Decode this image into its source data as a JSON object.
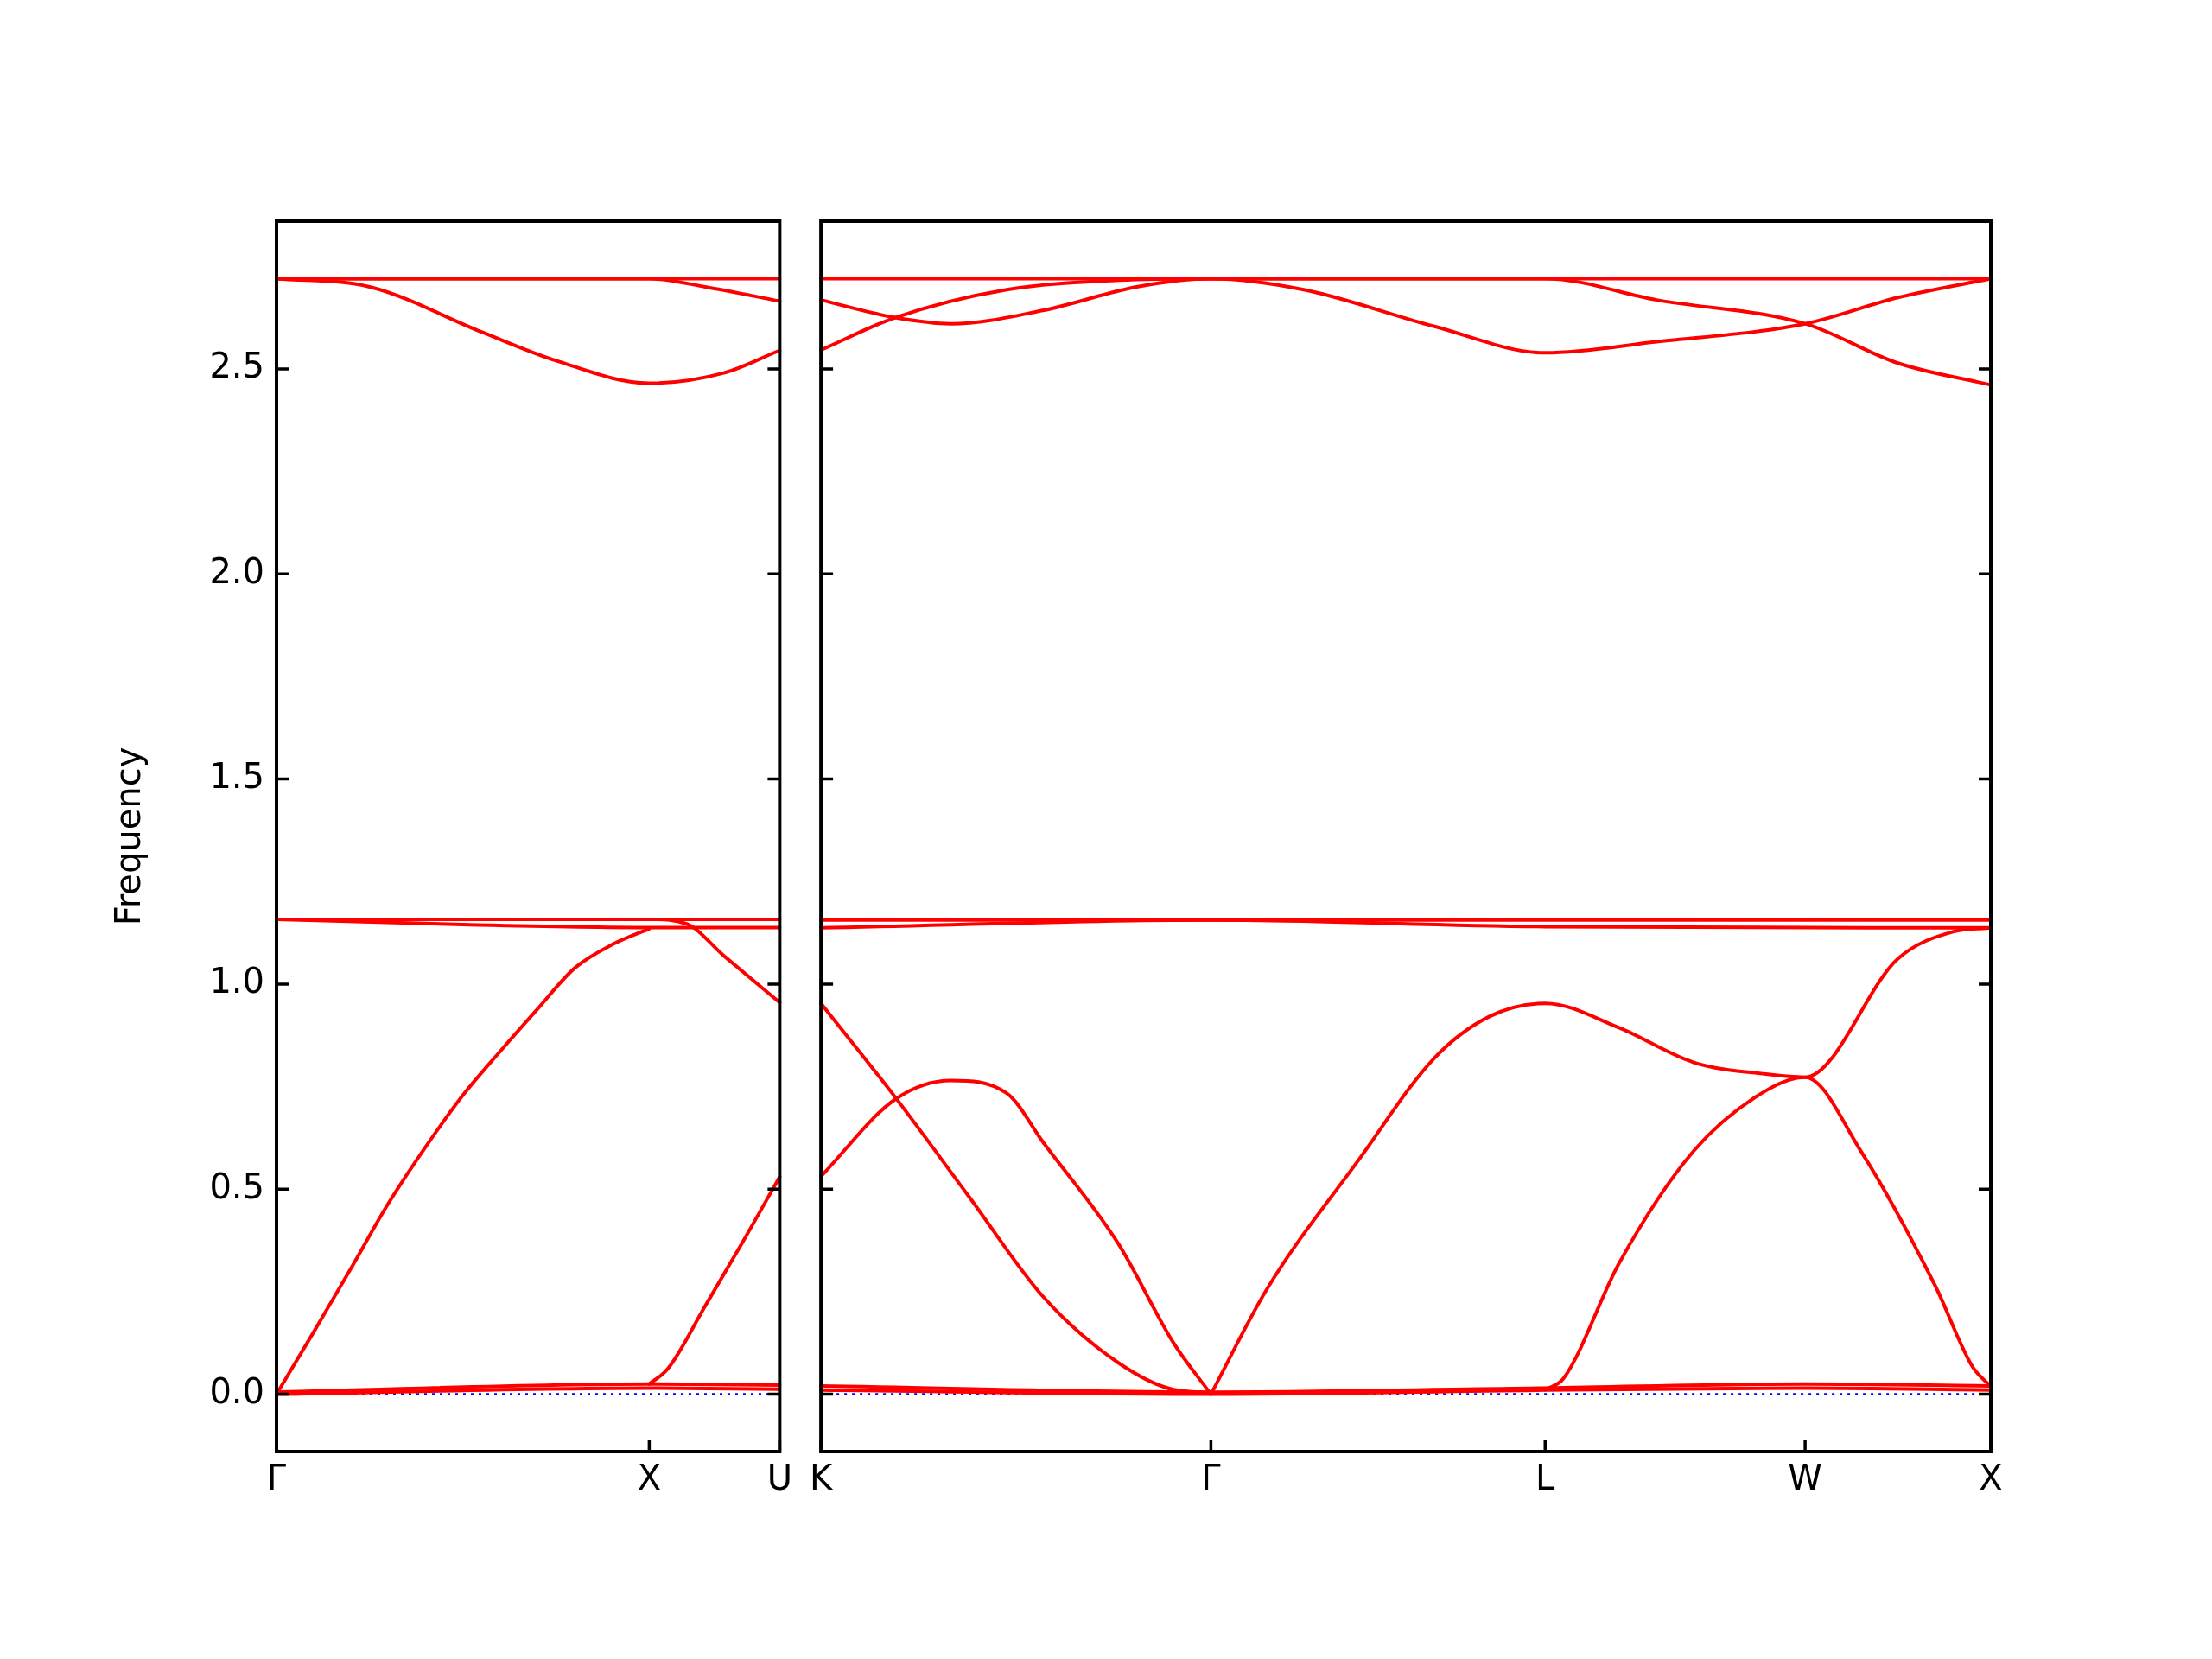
{
  "chart_data": [
    {
      "type": "line",
      "ylabel": "Frequency",
      "ylim": [
        -0.14,
        2.86
      ],
      "categories": [
        "Γ",
        null,
        null,
        null,
        null,
        null,
        null,
        null,
        null,
        null,
        null,
        null,
        null,
        null,
        null,
        null,
        null,
        null,
        null,
        null,
        "X",
        null,
        null,
        null,
        null,
        null,
        null,
        "U"
      ],
      "yticks": [
        {
          "value": 0,
          "label": "0.0"
        },
        {
          "value": 0.5,
          "label": "0.5"
        },
        {
          "value": 1.0,
          "label": "1.0"
        },
        {
          "value": 1.5,
          "label": "1.5"
        },
        {
          "value": 2.0,
          "label": "2.0"
        },
        {
          "value": 2.5,
          "label": "2.5"
        }
      ],
      "ref_lines": [
        {
          "axis": "y",
          "value": 0,
          "color": "#0000ff",
          "line_style": "dotted"
        }
      ],
      "series": [
        {
          "color": "#ff0000",
          "values": [
            2.72,
            null,
            null,
            null,
            null,
            null,
            null,
            null,
            null,
            null,
            null,
            null,
            null,
            null,
            null,
            null,
            null,
            null,
            null,
            null,
            null,
            null,
            null,
            null,
            null,
            null,
            null,
            2.72
          ]
        },
        {
          "color": "#ff0000",
          "values": [
            2.72,
            null,
            null,
            null,
            null,
            2.7,
            null,
            null,
            null,
            null,
            null,
            2.59,
            null,
            null,
            null,
            2.52,
            null,
            null,
            null,
            null,
            2.465,
            null,
            null,
            null,
            2.49,
            null,
            null,
            2.545
          ]
        },
        {
          "color": "#ff0000",
          "values": [
            2.72,
            null,
            null,
            null,
            null,
            null,
            null,
            null,
            null,
            null,
            null,
            null,
            null,
            null,
            null,
            null,
            null,
            null,
            null,
            null,
            2.72,
            null,
            null,
            2.7,
            null,
            null,
            null,
            2.665
          ]
        },
        {
          "color": "#ff0000",
          "values": [
            1.158,
            null,
            null,
            null,
            null,
            null,
            null,
            null,
            null,
            null,
            null,
            null,
            null,
            null,
            null,
            null,
            null,
            null,
            null,
            null,
            null,
            null,
            null,
            null,
            null,
            null,
            null,
            1.158
          ]
        },
        {
          "color": "#ff0000",
          "values": [
            1.158,
            null,
            null,
            null,
            null,
            null,
            null,
            null,
            null,
            null,
            1.145,
            null,
            null,
            null,
            null,
            null,
            null,
            null,
            null,
            null,
            1.138,
            null,
            null,
            null,
            null,
            null,
            null,
            1.138
          ]
        },
        {
          "color": "#ff0000",
          "values": [
            1.158,
            null,
            null,
            null,
            null,
            null,
            null,
            null,
            null,
            null,
            null,
            null,
            null,
            null,
            null,
            null,
            null,
            null,
            null,
            null,
            1.158,
            null,
            1.147,
            null,
            1.069,
            null,
            null,
            0.955
          ]
        },
        {
          "color": "#ff0000",
          "values": [
            0,
            null,
            0.152,
            null,
            0.307,
            null,
            0.465,
            null,
            0.603,
            null,
            0.729,
            null,
            0.836,
            null,
            0.939,
            null,
            1.039,
            null,
            1.096,
            null,
            1.135,
            null,
            null,
            null,
            null,
            null,
            null,
            null
          ]
        },
        {
          "color": "#ff0000",
          "values": [
            null,
            null,
            null,
            null,
            null,
            null,
            null,
            null,
            null,
            null,
            null,
            null,
            null,
            null,
            null,
            null,
            null,
            null,
            null,
            null,
            0.025,
            0.062,
            null,
            0.215,
            null,
            0.37,
            null,
            0.53
          ]
        },
        {
          "color": "#ff0000",
          "values": [
            0.005,
            null,
            null,
            null,
            null,
            null,
            null,
            null,
            null,
            null,
            null,
            null,
            null,
            null,
            null,
            null,
            null,
            null,
            null,
            null,
            0.025,
            null,
            null,
            null,
            null,
            null,
            null,
            0.022
          ]
        },
        {
          "color": "#ff0000",
          "values": [
            0,
            null,
            null,
            null,
            null,
            null,
            null,
            null,
            null,
            null,
            null,
            null,
            null,
            null,
            null,
            null,
            null,
            null,
            null,
            null,
            0.015,
            null,
            null,
            null,
            null,
            null,
            null,
            0.012
          ]
        }
      ]
    },
    {
      "type": "line",
      "tick_labels": "x",
      "ylim": [
        -0.14,
        2.86
      ],
      "categories": [
        "K",
        null,
        null,
        null,
        null,
        null,
        null,
        null,
        null,
        null,
        null,
        null,
        null,
        null,
        null,
        null,
        null,
        null,
        null,
        null,
        null,
        "Γ",
        null,
        null,
        null,
        null,
        null,
        null,
        null,
        null,
        null,
        null,
        null,
        null,
        null,
        null,
        null,
        null,
        null,
        "L",
        null,
        null,
        null,
        null,
        null,
        null,
        null,
        null,
        null,
        null,
        null,
        null,
        null,
        "W",
        null,
        null,
        null,
        null,
        null,
        null,
        null,
        null,
        null,
        "X"
      ],
      "yticks": [
        {
          "value": 0,
          "label": null
        },
        {
          "value": 0.5,
          "label": null
        },
        {
          "value": 1.0,
          "label": null
        },
        {
          "value": 1.5,
          "label": null
        },
        {
          "value": 2.0,
          "label": null
        },
        {
          "value": 2.5,
          "label": null
        }
      ],
      "ref_lines": [
        {
          "axis": "y",
          "value": 0,
          "color": "#0000ff",
          "line_style": "dotted"
        }
      ],
      "series": [
        {
          "color": "#ff0000",
          "values": [
            2.72,
            null,
            null,
            null,
            null,
            null,
            null,
            null,
            null,
            null,
            null,
            null,
            null,
            null,
            null,
            null,
            null,
            null,
            null,
            null,
            null,
            null,
            null,
            null,
            null,
            null,
            null,
            null,
            null,
            null,
            null,
            null,
            null,
            null,
            null,
            null,
            null,
            null,
            null,
            null,
            null,
            null,
            null,
            null,
            null,
            null,
            null,
            null,
            null,
            null,
            null,
            null,
            null,
            null,
            null,
            null,
            null,
            null,
            null,
            null,
            null,
            null,
            null,
            2.72
          ]
        },
        {
          "color": "#ff0000",
          "values": [
            2.668,
            null,
            null,
            null,
            2.625,
            null,
            null,
            2.61,
            null,
            null,
            null,
            null,
            2.643,
            null,
            null,
            null,
            null,
            2.7,
            null,
            null,
            null,
            2.72,
            null,
            null,
            null,
            null,
            2.693,
            null,
            null,
            null,
            null,
            null,
            null,
            2.604,
            null,
            null,
            null,
            null,
            null,
            2.539,
            null,
            null,
            null,
            null,
            null,
            2.566,
            null,
            null,
            null,
            null,
            null,
            null,
            null,
            2.61,
            null,
            null,
            null,
            null,
            2.674,
            null,
            null,
            null,
            null,
            2.72
          ]
        },
        {
          "color": "#ff0000",
          "values": [
            2.546,
            null,
            null,
            null,
            2.625,
            null,
            null,
            null,
            null,
            null,
            2.693,
            null,
            null,
            null,
            null,
            null,
            2.716,
            null,
            null,
            null,
            null,
            2.72,
            null,
            null,
            null,
            null,
            null,
            null,
            null,
            null,
            null,
            null,
            null,
            null,
            null,
            null,
            null,
            null,
            null,
            2.72,
            null,
            null,
            null,
            null,
            null,
            2.668,
            null,
            null,
            null,
            null,
            null,
            null,
            null,
            2.61,
            null,
            null,
            null,
            null,
            2.514,
            null,
            null,
            null,
            null,
            2.461
          ]
        },
        {
          "color": "#ff0000",
          "values": [
            1.156,
            null,
            null,
            null,
            null,
            null,
            null,
            null,
            null,
            null,
            null,
            null,
            null,
            null,
            null,
            null,
            null,
            null,
            null,
            null,
            null,
            null,
            null,
            null,
            null,
            null,
            null,
            null,
            null,
            null,
            null,
            null,
            null,
            null,
            null,
            null,
            null,
            null,
            null,
            null,
            null,
            null,
            null,
            null,
            null,
            null,
            null,
            null,
            null,
            null,
            null,
            null,
            null,
            null,
            null,
            null,
            null,
            null,
            null,
            null,
            null,
            null,
            null,
            1.156
          ]
        },
        {
          "color": "#ff0000",
          "values": [
            1.137,
            null,
            null,
            null,
            null,
            null,
            null,
            null,
            null,
            null,
            null,
            null,
            null,
            null,
            null,
            null,
            null,
            null,
            null,
            null,
            null,
            1.156,
            null,
            null,
            null,
            null,
            null,
            null,
            null,
            null,
            null,
            null,
            null,
            null,
            null,
            null,
            null,
            null,
            null,
            1.14,
            null,
            null,
            null,
            null,
            null,
            null,
            null,
            null,
            null,
            null,
            null,
            null,
            null,
            null,
            null,
            null,
            null,
            null,
            null,
            null,
            null,
            null,
            null,
            1.137
          ]
        },
        {
          "color": "#ff0000",
          "values": [
            0.953,
            null,
            null,
            null,
            0.724,
            null,
            null,
            null,
            0.48,
            null,
            null,
            null,
            0.236,
            null,
            null,
            null,
            0.077,
            null,
            null,
            0.011,
            null,
            0.004,
            null,
            null,
            null,
            null,
            null,
            null,
            null,
            null,
            null,
            null,
            null,
            null,
            null,
            null,
            null,
            null,
            null,
            null,
            null,
            null,
            null,
            null,
            null,
            null,
            null,
            null,
            null,
            null,
            null,
            null,
            null,
            null,
            null,
            null,
            null,
            null,
            null,
            null,
            null,
            null,
            null,
            null
          ]
        },
        {
          "color": "#ff0000",
          "values": [
            0.531,
            null,
            null,
            null,
            0.719,
            null,
            null,
            0.765,
            null,
            null,
            0.734,
            null,
            0.612,
            null,
            null,
            null,
            0.368,
            null,
            null,
            0.124,
            null,
            0,
            null,
            null,
            null,
            null,
            null,
            null,
            null,
            null,
            null,
            null,
            null,
            null,
            null,
            null,
            null,
            null,
            null,
            null,
            null,
            null,
            null,
            null,
            null,
            null,
            null,
            null,
            null,
            null,
            null,
            null,
            null,
            null,
            null,
            null,
            null,
            null,
            null,
            null,
            null,
            null,
            null,
            null
          ]
        },
        {
          "color": "#ff0000",
          "values": [
            null,
            null,
            null,
            null,
            null,
            null,
            null,
            null,
            null,
            null,
            null,
            null,
            null,
            null,
            null,
            null,
            null,
            null,
            null,
            null,
            null,
            0,
            null,
            null,
            0.255,
            null,
            null,
            null,
            null,
            0.574,
            null,
            null,
            null,
            0.818,
            null,
            null,
            0.921,
            null,
            null,
            0.953,
            null,
            null,
            null,
            0.893,
            null,
            null,
            null,
            0.809,
            null,
            null,
            null,
            0.78,
            null,
            0.773,
            null,
            null,
            null,
            null,
            1.062,
            null,
            null,
            1.128,
            null,
            1.137
          ]
        },
        {
          "color": "#ff0000",
          "values": [
            null,
            null,
            null,
            null,
            null,
            null,
            null,
            null,
            null,
            null,
            null,
            null,
            null,
            null,
            null,
            null,
            null,
            null,
            null,
            null,
            null,
            null,
            null,
            null,
            null,
            null,
            null,
            null,
            null,
            null,
            null,
            null,
            null,
            null,
            null,
            null,
            null,
            null,
            null,
            0.011,
            0.039,
            null,
            null,
            0.321,
            null,
            null,
            null,
            0.593,
            null,
            null,
            null,
            0.743,
            null,
            0.773,
            null,
            null,
            0.593,
            null,
            null,
            null,
            0.265,
            null,
            0.068,
            0.019
          ]
        },
        {
          "color": "#ff0000",
          "values": [
            0.02,
            null,
            null,
            null,
            null,
            null,
            null,
            null,
            null,
            null,
            null,
            null,
            null,
            null,
            null,
            null,
            null,
            null,
            null,
            null,
            null,
            0.005,
            null,
            null,
            null,
            null,
            null,
            null,
            null,
            null,
            null,
            null,
            null,
            null,
            null,
            null,
            null,
            null,
            null,
            0.015,
            null,
            null,
            null,
            null,
            null,
            null,
            null,
            null,
            null,
            null,
            null,
            null,
            null,
            0.025,
            null,
            null,
            null,
            null,
            null,
            null,
            null,
            null,
            null,
            0.02
          ]
        },
        {
          "color": "#ff0000",
          "values": [
            0.01,
            null,
            null,
            null,
            null,
            null,
            null,
            null,
            null,
            null,
            null,
            null,
            null,
            null,
            null,
            null,
            null,
            null,
            null,
            null,
            null,
            0,
            null,
            null,
            null,
            null,
            null,
            null,
            null,
            null,
            null,
            null,
            null,
            null,
            null,
            null,
            null,
            null,
            null,
            0.01,
            null,
            null,
            null,
            null,
            null,
            null,
            null,
            null,
            null,
            null,
            null,
            null,
            null,
            0.015,
            null,
            null,
            null,
            null,
            null,
            null,
            null,
            null,
            null,
            0.01
          ]
        }
      ]
    }
  ]
}
